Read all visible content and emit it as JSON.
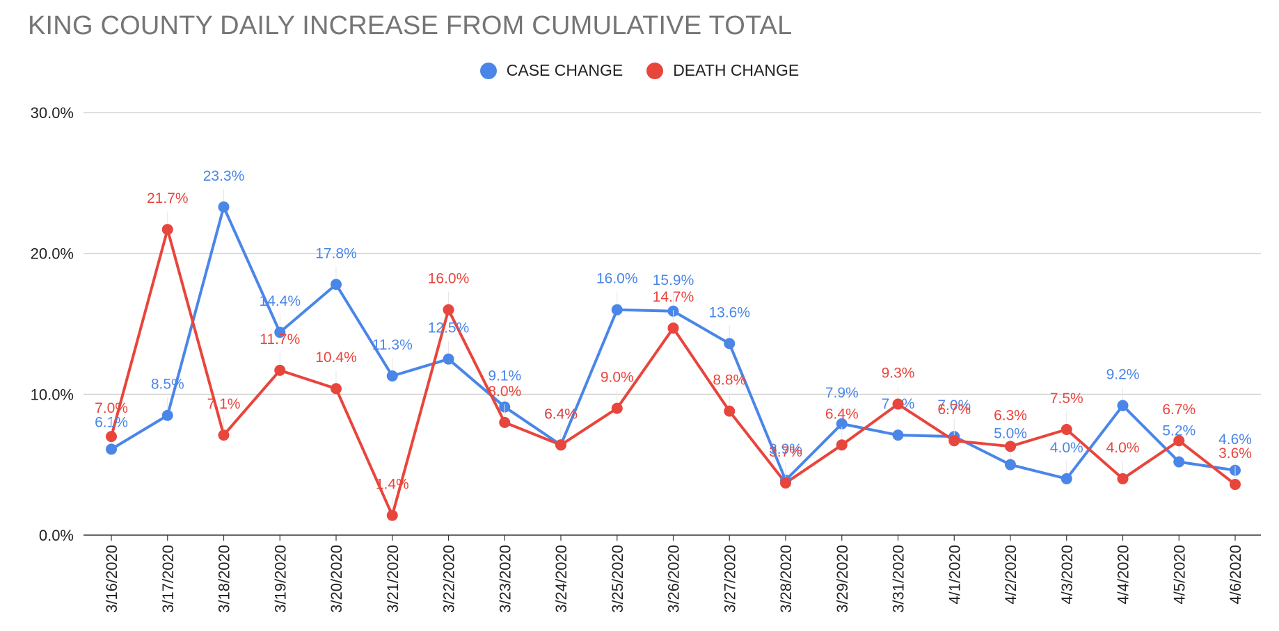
{
  "chart_data": {
    "type": "line",
    "title": "KING COUNTY DAILY INCREASE FROM CUMULATIVE TOTAL",
    "xlabel": "",
    "ylabel": "",
    "x": [
      "3/16/2020",
      "3/17/2020",
      "3/18/2020",
      "3/19/2020",
      "3/20/2020",
      "3/21/2020",
      "3/22/2020",
      "3/23/2020",
      "3/24/2020",
      "3/25/2020",
      "3/26/2020",
      "3/27/2020",
      "3/28/2020",
      "3/29/2020",
      "3/31/2020",
      "4/1/2020",
      "4/2/2020",
      "4/3/2020",
      "4/4/2020",
      "4/5/2020",
      "4/6/2020"
    ],
    "ylim": [
      0,
      30
    ],
    "yticks": [
      "0.0%",
      "10.0%",
      "20.0%",
      "30.0%"
    ],
    "grid": true,
    "legend_position": "top-center",
    "series": [
      {
        "name": "CASE CHANGE",
        "color": "#4A86E8",
        "values": [
          6.1,
          8.5,
          23.3,
          14.4,
          17.8,
          11.3,
          12.5,
          9.1,
          6.4,
          16.0,
          15.9,
          13.6,
          3.9,
          7.9,
          7.1,
          7.0,
          5.0,
          4.0,
          9.2,
          5.2,
          4.6
        ],
        "labels": [
          "6.1%",
          "8.5%",
          "23.3%",
          "14.4%",
          "17.8%",
          "11.3%",
          "12.5%",
          "9.1%",
          "6.4%",
          "16.0%",
          "15.9%",
          "13.6%",
          "3.9%",
          "7.9%",
          "7.1%",
          "7.0%",
          "5.0%",
          "4.0%",
          "9.2%",
          "5.2%",
          "4.6%"
        ]
      },
      {
        "name": "DEATH CHANGE",
        "color": "#E8453C",
        "values": [
          7.0,
          21.7,
          7.1,
          11.7,
          10.4,
          1.4,
          16.0,
          8.0,
          6.4,
          9.0,
          14.7,
          8.8,
          3.7,
          6.4,
          9.3,
          6.7,
          6.3,
          7.5,
          4.0,
          6.7,
          3.6
        ],
        "labels": [
          "7.0%",
          "21.7%",
          "7.1%",
          "11.7%",
          "10.4%",
          "1.4%",
          "16.0%",
          "8.0%",
          "6.4%",
          "9.0%",
          "14.7%",
          "8.8%",
          "3.7%",
          "6.4%",
          "9.3%",
          "6.7%",
          "6.3%",
          "7.5%",
          "4.0%",
          "6.7%",
          "3.6%"
        ]
      }
    ]
  }
}
